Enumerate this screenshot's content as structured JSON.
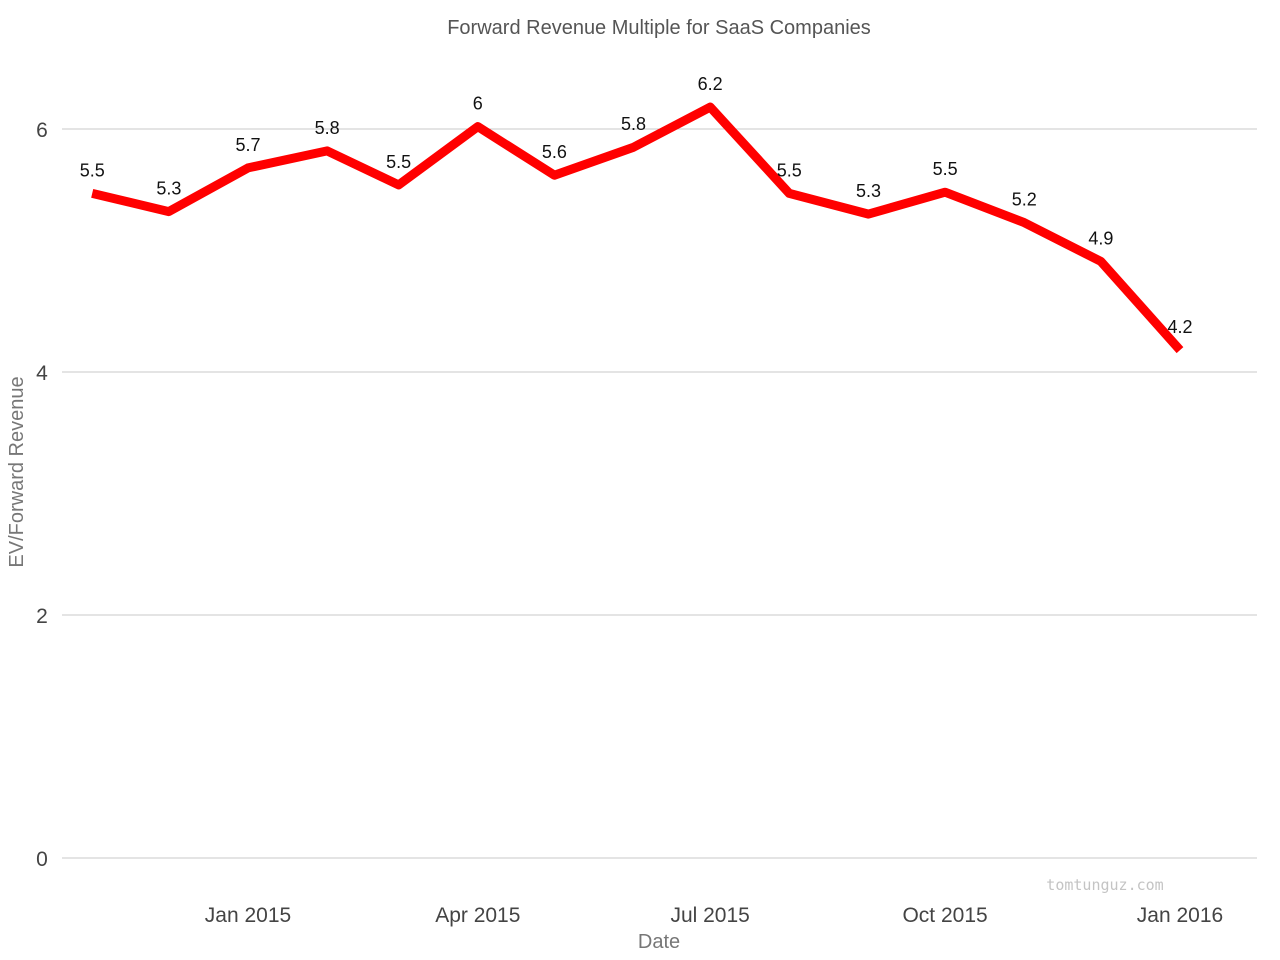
{
  "chart_data": {
    "type": "line",
    "title": "Forward Revenue Multiple for SaaS Companies",
    "xlabel": "Date",
    "ylabel": "EV/Forward Revenue",
    "x": [
      "2014-11-01",
      "2014-12-01",
      "2015-01-01",
      "2015-02-01",
      "2015-03-01",
      "2015-04-01",
      "2015-05-01",
      "2015-06-01",
      "2015-07-01",
      "2015-08-01",
      "2015-09-01",
      "2015-10-01",
      "2015-11-01",
      "2015-12-01",
      "2016-01-01"
    ],
    "series": [
      {
        "values": [
          5.47,
          5.32,
          5.68,
          5.82,
          5.54,
          6.02,
          5.62,
          5.85,
          6.18,
          5.47,
          5.3,
          5.48,
          5.23,
          4.91,
          4.18
        ],
        "labels": [
          "5.5",
          "5.3",
          "5.7",
          "5.8",
          "5.5",
          "6",
          "5.6",
          "5.8",
          "6.2",
          "5.5",
          "5.3",
          "5.5",
          "5.2",
          "4.9",
          "4.2"
        ],
        "color": "#ff0000"
      }
    ],
    "x_ticks": [
      "Jan 2015",
      "Apr 2015",
      "Jul 2015",
      "Oct 2015",
      "Jan 2016"
    ],
    "y_ticks": [
      "0",
      "2",
      "4",
      "6"
    ],
    "ylim": [
      0,
      6.6
    ],
    "grid": true,
    "legend": "none"
  },
  "watermark": "tomtunguz.com"
}
